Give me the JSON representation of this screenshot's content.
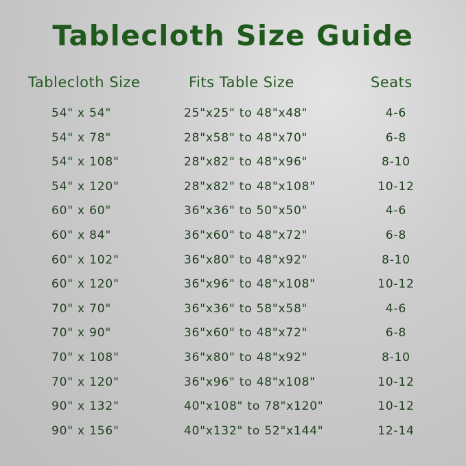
{
  "title": "Tablecloth Size Guide",
  "headers": [
    "Tablecloth Size",
    "Fits Table Size",
    "Seats"
  ],
  "rows": [
    [
      "54\" x 54\"",
      "25\"x25\" to 48\"x48\"",
      "4-6"
    ],
    [
      "54\" x 78\"",
      "28\"x58\" to 48\"x70\"",
      "6-8"
    ],
    [
      "54\" x 108\"",
      "28\"x82\" to 48\"x96\"",
      "8-10"
    ],
    [
      "54\" x 120\"",
      "28\"x82\" to 48\"x108\"",
      "10-12"
    ],
    [
      "60\" x 60\"",
      "36\"x36\" to 50\"x50\"",
      "4-6"
    ],
    [
      "60\" x 84\"",
      "36\"x60\" to 48\"x72\"",
      "6-8"
    ],
    [
      "60\" x 102\"",
      "36\"x80\" to 48\"x92\"",
      "8-10"
    ],
    [
      "60\" x 120\"",
      "36\"x96\" to 48\"x108\"",
      "10-12"
    ],
    [
      "70\" x 70\"",
      "36\"x36\" to 58\"x58\"",
      "4-6"
    ],
    [
      "70\" x 90\"",
      "36\"x60\" to 48\"x72\"",
      "6-8"
    ],
    [
      "70\" x 108\"",
      "36\"x80\" to 48\"x92\"",
      "8-10"
    ],
    [
      "70\" x 120\"",
      "36\"x96\" to 48\"x108\"",
      "10-12"
    ],
    [
      "90\" x 132\"",
      "40\"x108\" to 78\"x120\"",
      "10-12"
    ],
    [
      "90\" x 156\"",
      "40\"x132\" to 52\"x144\"",
      "12-14"
    ]
  ],
  "colors": {
    "title": "#1f5a1c",
    "text": "#1f3f1d",
    "background": "#c8c8c8"
  }
}
